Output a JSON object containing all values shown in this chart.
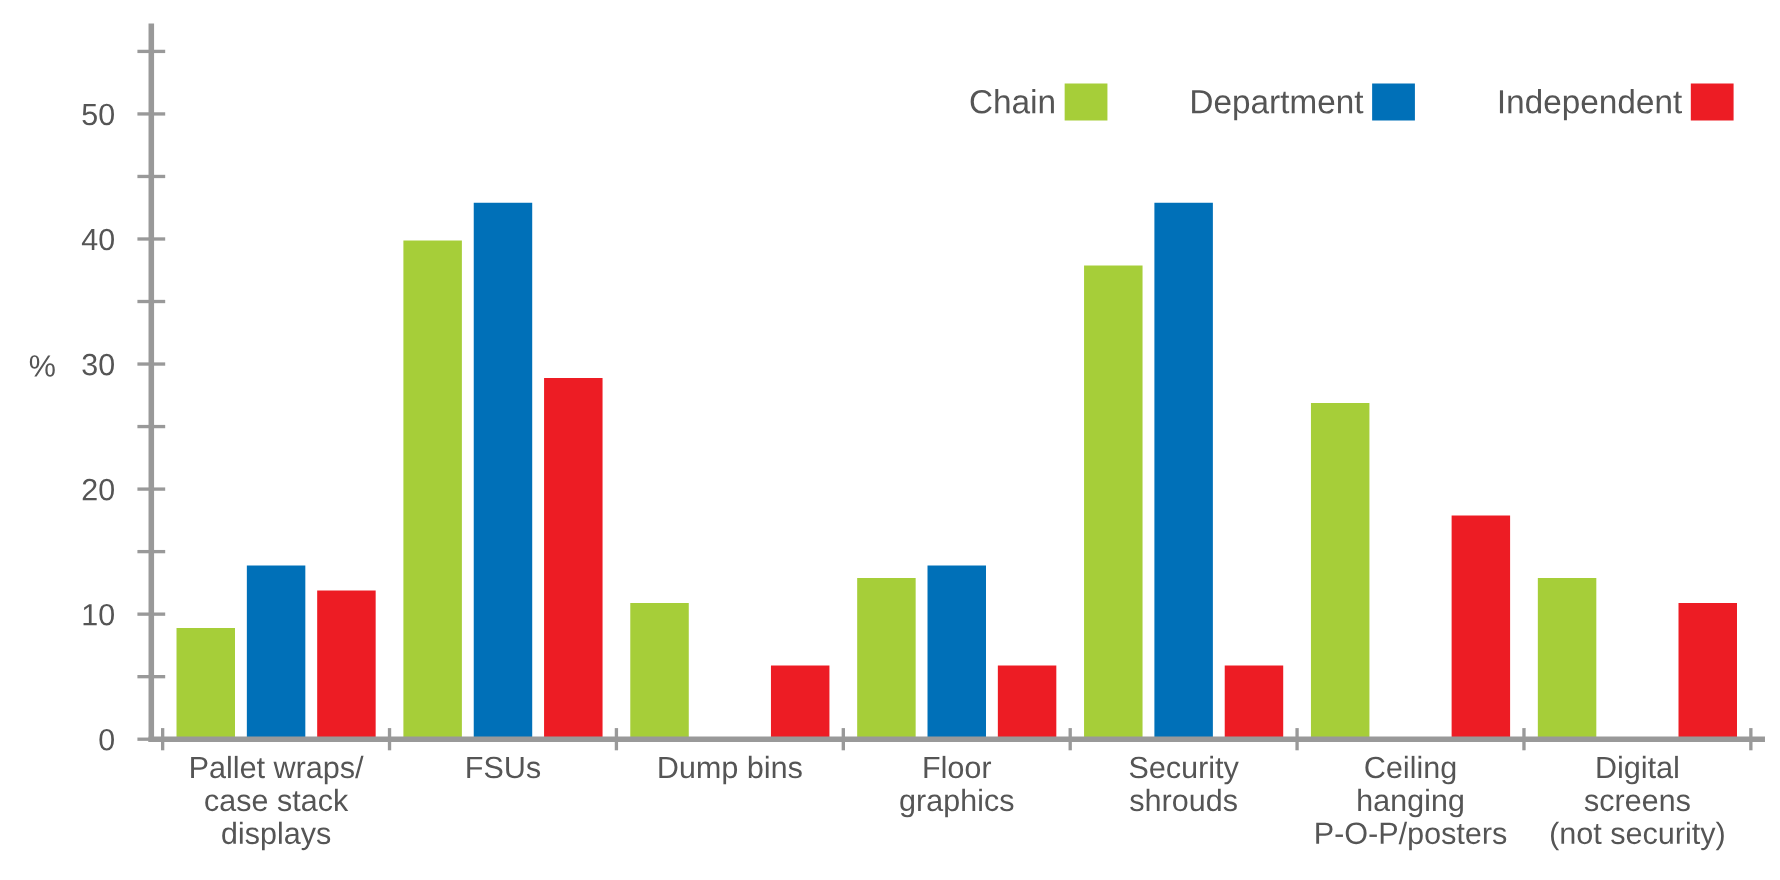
{
  "chart_data": {
    "type": "bar",
    "ylabel": "%",
    "categories": [
      "Pallet wraps/\ncase stack\ndisplays",
      "FSUs",
      "Dump bins",
      "Floor\ngraphics",
      "Security\nshrouds",
      "Ceiling\nhanging\nP-O-P/posters",
      "Digital\nscreens\n(not security)"
    ],
    "series": [
      {
        "name": "Chain",
        "color": "#a6ce39",
        "values": [
          9,
          40,
          11,
          13,
          38,
          27,
          13
        ]
      },
      {
        "name": "Department",
        "color": "#0070b8",
        "values": [
          14,
          43,
          null,
          14,
          43,
          null,
          null
        ]
      },
      {
        "name": "Independent",
        "color": "#ed1c24",
        "values": [
          12,
          29,
          6,
          6,
          6,
          18,
          11
        ]
      }
    ],
    "ylim": [
      0,
      57
    ],
    "yticks": [
      0,
      {
        "value": 5,
        "label": null
      },
      10,
      {
        "value": 15,
        "label": null
      },
      20,
      {
        "value": 25,
        "label": null
      },
      30,
      {
        "value": 35,
        "label": null
      },
      40,
      {
        "value": 45,
        "label": null
      },
      50,
      {
        "value": 55,
        "label": null
      }
    ],
    "grid": false,
    "legend": "top right"
  }
}
